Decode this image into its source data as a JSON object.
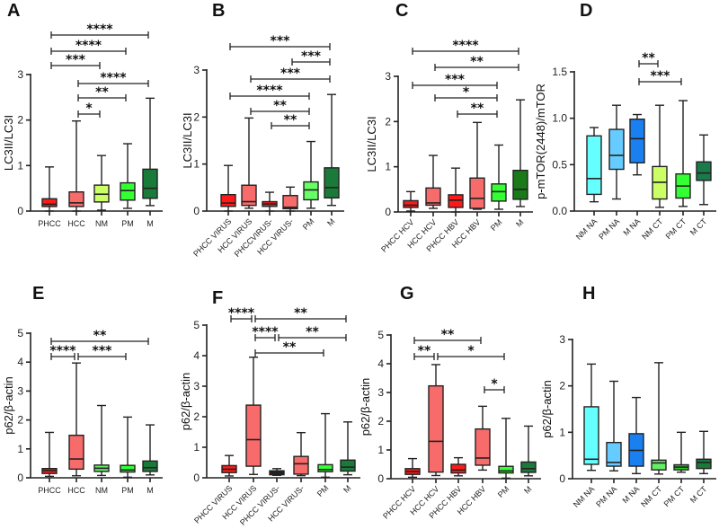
{
  "chart_data": [
    {
      "panel": "A",
      "type": "box",
      "ylabel": "LC3II/LC3I",
      "ylim": [
        0,
        3
      ],
      "yticks": [
        "0",
        "1",
        "2",
        "3"
      ],
      "ytick_values": [
        0,
        1,
        2,
        3
      ],
      "categories": [
        "PHCC",
        "HCC",
        "NM",
        "PM",
        "M"
      ],
      "colors": [
        "#ff1a1a",
        "#f76b6b",
        "#ccff66",
        "#33ff33",
        "#1a7a3a"
      ],
      "boxes": [
        [
          0,
          0.1,
          0.15,
          0.27,
          0.97
        ],
        [
          0,
          0.1,
          0.18,
          0.42,
          1.98
        ],
        [
          0.02,
          0.2,
          0.37,
          0.57,
          1.22
        ],
        [
          0.06,
          0.24,
          0.45,
          0.62,
          1.48
        ],
        [
          0.12,
          0.28,
          0.5,
          0.92,
          2.48
        ]
      ],
      "significance": [
        {
          "pair": [
            0,
            4
          ],
          "label": "****"
        },
        {
          "pair": [
            0,
            3
          ],
          "label": "****"
        },
        {
          "pair": [
            0,
            2
          ],
          "label": "***"
        },
        {
          "pair": [
            1,
            4
          ],
          "label": "****"
        },
        {
          "pair": [
            1,
            3
          ],
          "label": "**"
        },
        {
          "pair": [
            1,
            2
          ],
          "label": "*"
        }
      ]
    },
    {
      "panel": "B",
      "type": "box",
      "ylabel": "LC3II/LC3I",
      "ylim": [
        0,
        3
      ],
      "yticks": [
        "0",
        "1",
        "2",
        "3"
      ],
      "ytick_values": [
        0,
        1,
        2,
        3
      ],
      "categories": [
        "PHCC VIRUS",
        "HCC VIRUS",
        "PHCCVIRUS-",
        "HCC VIRUS-",
        "PM",
        "M"
      ],
      "colors": [
        "#ff1a1a",
        "#f76b6b",
        "#ff1a1a",
        "#f76b6b",
        "#66ff66",
        "#1a7a3a"
      ],
      "boxes": [
        [
          0,
          0.1,
          0.17,
          0.35,
          0.97
        ],
        [
          0.06,
          0.12,
          0.2,
          0.55,
          1.98
        ],
        [
          0,
          0.1,
          0.15,
          0.2,
          0.4
        ],
        [
          0,
          0.05,
          0.08,
          0.33,
          0.51
        ],
        [
          0.06,
          0.24,
          0.45,
          0.62,
          1.48
        ],
        [
          0.12,
          0.28,
          0.5,
          0.92,
          2.48
        ]
      ],
      "significance": [
        {
          "pair": [
            0,
            5
          ],
          "label": "***"
        },
        {
          "pair": [
            3,
            5
          ],
          "label": "***"
        },
        {
          "pair": [
            1,
            5
          ],
          "label": "***"
        },
        {
          "pair": [
            0,
            4
          ],
          "label": "****"
        },
        {
          "pair": [
            1,
            4
          ],
          "label": "**"
        },
        {
          "pair": [
            2,
            4
          ],
          "label": "**"
        }
      ]
    },
    {
      "panel": "C",
      "type": "box",
      "ylabel": "LC3II/LC3I",
      "ylim": [
        0,
        3
      ],
      "yticks": [
        "0",
        "1",
        "2",
        "3"
      ],
      "ytick_values": [
        0,
        1,
        2,
        3
      ],
      "categories": [
        "PHCC HCV",
        "HCC HCV",
        "PHCC HBV",
        "HCC HBV",
        "PM",
        "M"
      ],
      "colors": [
        "#ff1a1a",
        "#f76b6b",
        "#ff1a1a",
        "#f76b6b",
        "#33ff33",
        "#1a7a1a"
      ],
      "boxes": [
        [
          0.02,
          0.1,
          0.15,
          0.25,
          0.45
        ],
        [
          0.08,
          0.15,
          0.2,
          0.53,
          1.25
        ],
        [
          0,
          0.1,
          0.26,
          0.38,
          0.97
        ],
        [
          0.06,
          0.08,
          0.3,
          0.75,
          1.98
        ],
        [
          0.06,
          0.24,
          0.45,
          0.62,
          1.48
        ],
        [
          0.12,
          0.28,
          0.5,
          0.92,
          2.48
        ]
      ],
      "significance": [
        {
          "pair": [
            0,
            5
          ],
          "label": "****"
        },
        {
          "pair": [
            1,
            5
          ],
          "label": "**"
        },
        {
          "pair": [
            0,
            4
          ],
          "label": "***"
        },
        {
          "pair": [
            1,
            4
          ],
          "label": "*"
        },
        {
          "pair": [
            2,
            4
          ],
          "label": "**"
        }
      ]
    },
    {
      "panel": "D",
      "type": "box",
      "ylabel": "p-mTOR(2448)/mTOR",
      "ylim": [
        0,
        1.5
      ],
      "yticks": [
        "0.0",
        "0.5",
        "1.0",
        "1.5"
      ],
      "ytick_values": [
        0,
        0.5,
        1,
        1.5
      ],
      "categories": [
        "NM NA",
        "PM NA",
        "M NA",
        "NM CT",
        "PM CT",
        "M CT"
      ],
      "colors": [
        "#66ffff",
        "#66ccff",
        "#1a80f0",
        "#ccff66",
        "#33ff33",
        "#1a7a4a"
      ],
      "boxes": [
        [
          0.1,
          0.18,
          0.35,
          0.81,
          0.9
        ],
        [
          0.13,
          0.45,
          0.6,
          0.88,
          1.14
        ],
        [
          0.39,
          0.52,
          0.78,
          0.99,
          1.04
        ],
        [
          0.04,
          0.13,
          0.31,
          0.48,
          1.14
        ],
        [
          0.05,
          0.14,
          0.27,
          0.4,
          1.19
        ],
        [
          0.07,
          0.33,
          0.41,
          0.53,
          0.82
        ]
      ],
      "significance": [
        {
          "pair": [
            2,
            3
          ],
          "label": "**"
        },
        {
          "pair": [
            2,
            4
          ],
          "label": "***"
        }
      ]
    },
    {
      "panel": "E",
      "type": "box",
      "ylabel": "p62/β-actin",
      "ylim": [
        0,
        5
      ],
      "yticks": [
        "0",
        "1",
        "2",
        "3",
        "4",
        "5"
      ],
      "ytick_values": [
        0,
        1,
        2,
        3,
        4,
        5
      ],
      "categories": [
        "PHCC",
        "HCC",
        "NM",
        "PM",
        "M"
      ],
      "colors": [
        "#ff1a1a",
        "#f76b6b",
        "#66ee66",
        "#33ff33",
        "#1a7a3a"
      ],
      "boxes": [
        [
          0.05,
          0.15,
          0.25,
          0.32,
          1.57
        ],
        [
          0.07,
          0.3,
          0.65,
          1.47,
          3.97
        ],
        [
          0.08,
          0.22,
          0.33,
          0.44,
          2.5
        ],
        [
          0.02,
          0.2,
          0.27,
          0.43,
          2.1
        ],
        [
          0.1,
          0.22,
          0.35,
          0.58,
          1.83
        ]
      ],
      "significance": [
        {
          "pair": [
            0,
            4
          ],
          "label": "**"
        },
        {
          "pair": [
            0,
            1
          ],
          "label": "****"
        },
        {
          "pair": [
            1,
            3
          ],
          "label": "***"
        }
      ]
    },
    {
      "panel": "F",
      "type": "box",
      "ylabel": "p62/β-actin",
      "ylim": [
        0,
        5
      ],
      "yticks": [
        "0",
        "1",
        "2",
        "3",
        "4",
        "5"
      ],
      "ytick_values": [
        0,
        1,
        2,
        3,
        4,
        5
      ],
      "categories": [
        "PHCC VIRUS",
        "HCC VIRUS",
        "PHCC VIRUS-",
        "HCC VIRUS-",
        "PM",
        "M"
      ],
      "colors": [
        "#ff1a1a",
        "#f76b6b",
        "#222222",
        "#f76b6b",
        "#33ff33",
        "#1a7a3a"
      ],
      "boxes": [
        [
          0.06,
          0.17,
          0.28,
          0.4,
          0.73
        ],
        [
          0.11,
          0.38,
          1.25,
          2.38,
          3.95
        ],
        [
          0.08,
          0.1,
          0.17,
          0.23,
          0.3
        ],
        [
          0.07,
          0.12,
          0.46,
          0.7,
          1.48
        ],
        [
          0.02,
          0.2,
          0.27,
          0.43,
          2.1
        ],
        [
          0.1,
          0.22,
          0.35,
          0.58,
          1.83
        ]
      ],
      "significance": [
        {
          "pair": [
            0,
            1
          ],
          "label": "****"
        },
        {
          "pair": [
            1,
            5
          ],
          "label": "**"
        },
        {
          "pair": [
            1,
            2
          ],
          "label": "****"
        },
        {
          "pair": [
            2,
            5
          ],
          "label": "**"
        },
        {
          "pair": [
            1,
            4
          ],
          "label": "**"
        }
      ]
    },
    {
      "panel": "G",
      "type": "box",
      "ylabel": "p62/β-actin",
      "ylim": [
        0,
        5
      ],
      "yticks": [
        "0",
        "1",
        "2",
        "3",
        "4",
        "5"
      ],
      "ytick_values": [
        0,
        1,
        2,
        3,
        4,
        5
      ],
      "categories": [
        "PHCC HCV",
        "HCC HCV",
        "PHCC HBV",
        "HCC HBV",
        "PM",
        "M"
      ],
      "colors": [
        "#ff1a1a",
        "#f76b6b",
        "#ff1a1a",
        "#f76b6b",
        "#33ff33",
        "#1a7a3a"
      ],
      "boxes": [
        [
          0.05,
          0.15,
          0.25,
          0.35,
          0.7
        ],
        [
          0.11,
          0.23,
          1.3,
          3.23,
          3.97
        ],
        [
          0.1,
          0.2,
          0.3,
          0.5,
          0.73
        ],
        [
          0.3,
          0.47,
          0.72,
          1.73,
          2.52
        ],
        [
          0.02,
          0.2,
          0.27,
          0.43,
          2.1
        ],
        [
          0.1,
          0.22,
          0.35,
          0.58,
          1.83
        ]
      ],
      "significance": [
        {
          "pair": [
            0,
            3
          ],
          "label": "**"
        },
        {
          "pair": [
            0,
            1
          ],
          "label": "**"
        },
        {
          "pair": [
            1,
            4
          ],
          "label": "*"
        },
        {
          "pair": [
            3,
            4
          ],
          "label": "*"
        }
      ]
    },
    {
      "panel": "H",
      "type": "box",
      "ylabel": "p62/β-actin",
      "ylim": [
        0,
        3
      ],
      "yticks": [
        "0",
        "1",
        "2",
        "3"
      ],
      "ytick_values": [
        0,
        1,
        2,
        3
      ],
      "categories": [
        "NM NA",
        "PM NA",
        "M NA",
        "NM CT",
        "PM CT",
        "M CT"
      ],
      "colors": [
        "#66ffff",
        "#66ccff",
        "#1a80f0",
        "#66ee66",
        "#22cc22",
        "#1a7a3a"
      ],
      "boxes": [
        [
          0.18,
          0.31,
          0.42,
          1.55,
          2.47
        ],
        [
          0.17,
          0.27,
          0.35,
          0.78,
          2.1
        ],
        [
          0.11,
          0.27,
          0.61,
          0.97,
          1.75
        ],
        [
          0.1,
          0.19,
          0.34,
          0.4,
          2.5
        ],
        [
          0.14,
          0.19,
          0.25,
          0.3,
          1.0
        ],
        [
          0.11,
          0.22,
          0.35,
          0.42,
          1.02
        ]
      ],
      "significance": []
    }
  ]
}
